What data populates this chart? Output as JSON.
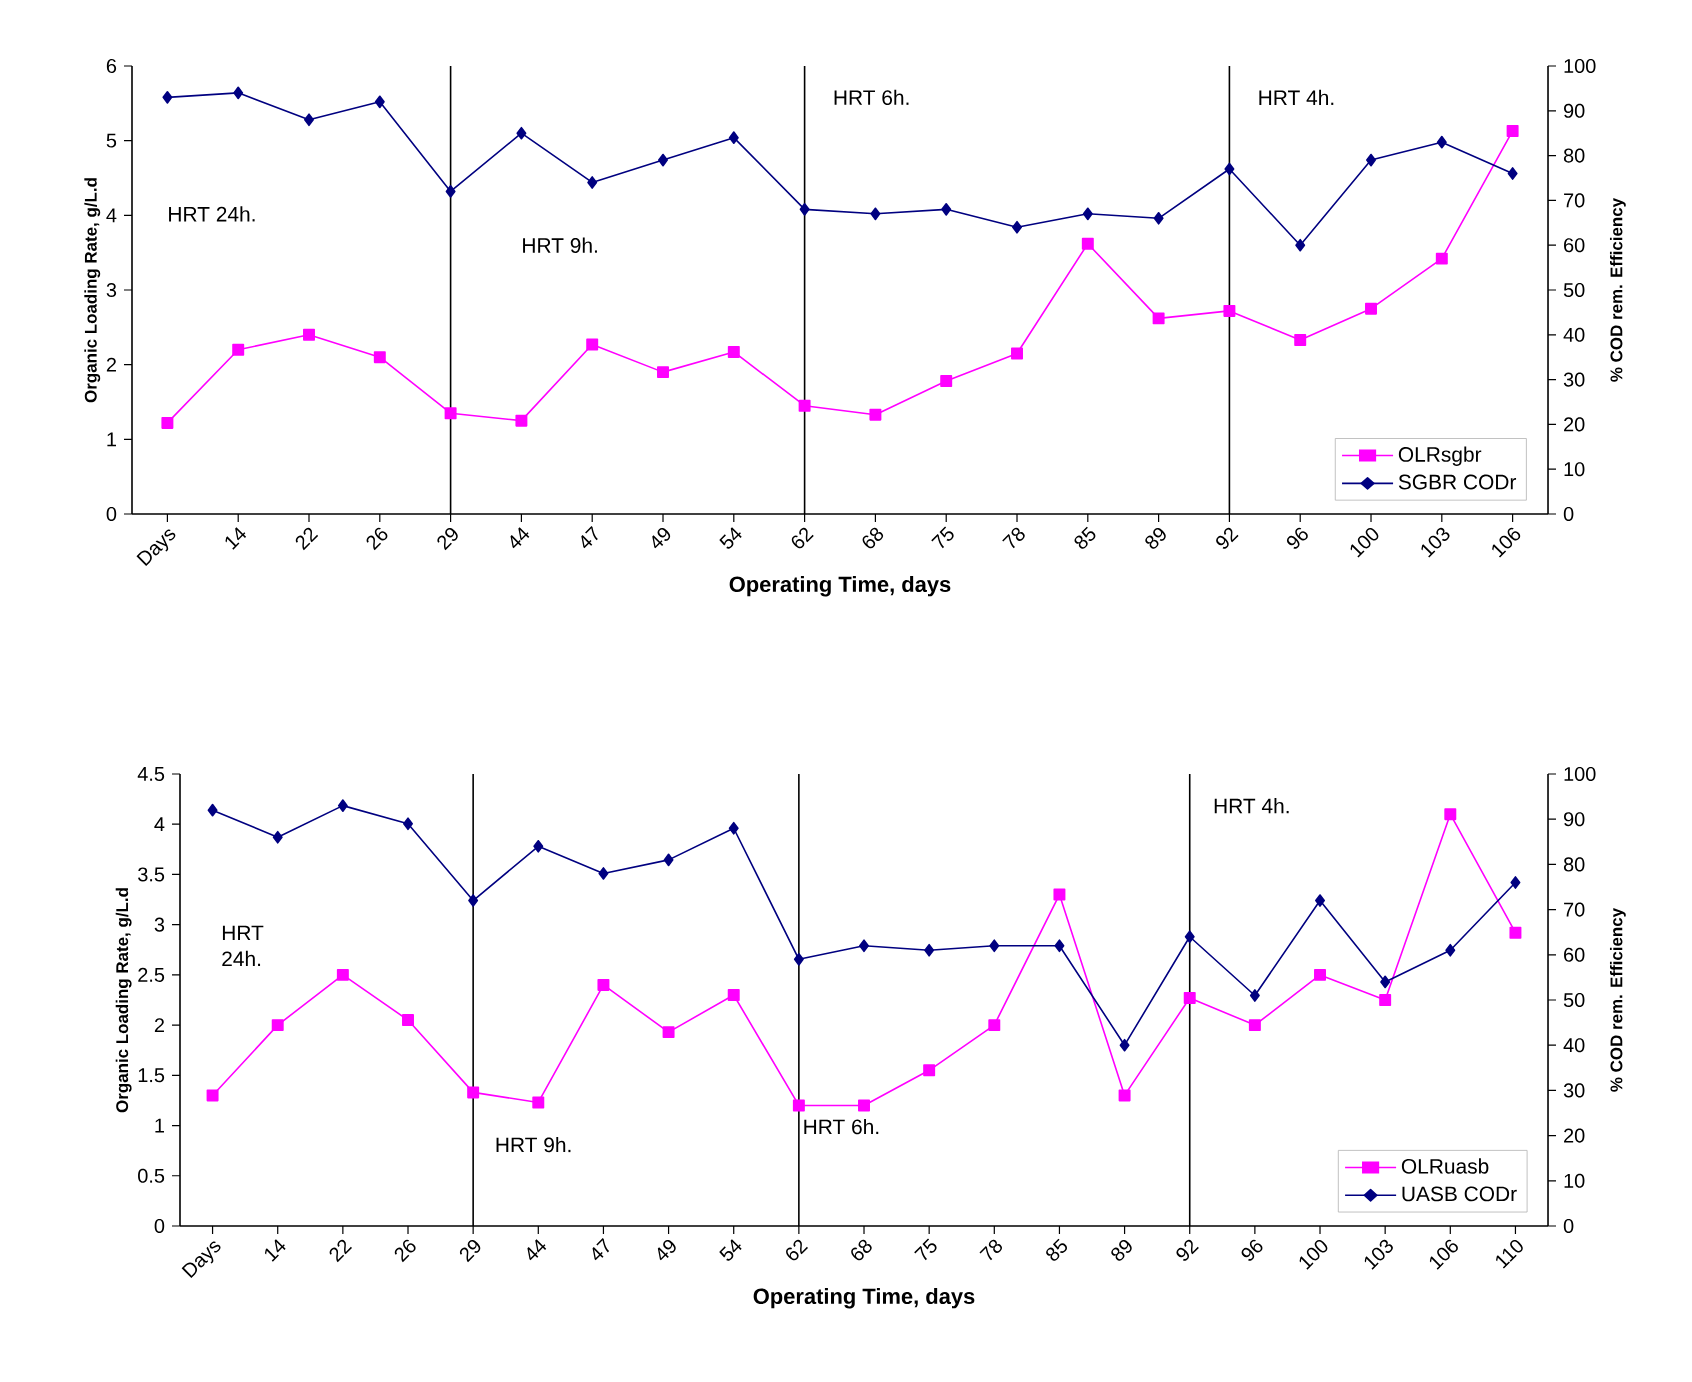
{
  "chart_data": [
    {
      "type": "line",
      "xlabel": "Operating Time, days",
      "ylabel": "Organic Loading Rate, g/L.d",
      "y2label": "% COD rem. Efficiency",
      "categories": [
        "Days",
        "14",
        "22",
        "26",
        "29",
        "44",
        "47",
        "49",
        "54",
        "62",
        "68",
        "75",
        "78",
        "85",
        "89",
        "92",
        "96",
        "100",
        "103",
        "106"
      ],
      "ylim": [
        0,
        6
      ],
      "yticks": [
        0,
        1,
        2,
        3,
        4,
        5,
        6
      ],
      "y2lim": [
        0,
        100
      ],
      "y2ticks": [
        0,
        10,
        20,
        30,
        40,
        50,
        60,
        70,
        80,
        90,
        100
      ],
      "series": [
        {
          "name": "OLRsgbr",
          "color": "#ff00ff",
          "marker": "square",
          "values": [
            1.22,
            2.2,
            2.4,
            2.1,
            1.35,
            1.25,
            2.27,
            1.9,
            2.17,
            1.45,
            1.33,
            1.78,
            2.15,
            3.62,
            2.62,
            2.72,
            2.33,
            2.75,
            3.42,
            5.13
          ]
        },
        {
          "name": "SGBR CODr",
          "color": "#000080",
          "marker": "diamond",
          "axis": "y2",
          "values": [
            93,
            94,
            88,
            92,
            72,
            85,
            74,
            79,
            84,
            68,
            67,
            68,
            64,
            67,
            66,
            77,
            60,
            79,
            83,
            76
          ]
        }
      ],
      "ref_lines": [
        {
          "axis": "x",
          "value": "29"
        },
        {
          "axis": "x",
          "value": "62"
        },
        {
          "axis": "x",
          "value": "92"
        }
      ],
      "annotations": [
        "HRT 24h.",
        "HRT 9h.",
        "HRT 6h.",
        "HRT 4h."
      ],
      "legend": "bottom right"
    },
    {
      "type": "line",
      "xlabel": "Operating Time, days",
      "ylabel": "Organic Loading Rate, g/L.d",
      "y2label": "% COD rem. Efficiency",
      "categories": [
        "Days",
        "14",
        "22",
        "26",
        "29",
        "44",
        "47",
        "49",
        "54",
        "62",
        "68",
        "75",
        "78",
        "85",
        "89",
        "92",
        "96",
        "100",
        "103",
        "106",
        "110"
      ],
      "ylim": [
        0,
        4.5
      ],
      "yticks": [
        0,
        0.5,
        1,
        1.5,
        2,
        2.5,
        3,
        3.5,
        4,
        4.5
      ],
      "y2lim": [
        0,
        100
      ],
      "y2ticks": [
        0,
        10,
        20,
        30,
        40,
        50,
        60,
        70,
        80,
        90,
        100
      ],
      "series": [
        {
          "name": "OLRuasb",
          "color": "#ff00ff",
          "marker": "square",
          "values": [
            1.3,
            2.0,
            2.5,
            2.05,
            1.33,
            1.23,
            2.4,
            1.93,
            2.3,
            1.2,
            1.2,
            1.55,
            2.0,
            3.3,
            1.3,
            2.27,
            2.0,
            2.5,
            2.25,
            4.1,
            2.92
          ]
        },
        {
          "name": "UASB CODr",
          "color": "#000080",
          "marker": "diamond",
          "axis": "y2",
          "values": [
            92,
            86,
            93,
            89,
            72,
            84,
            78,
            81,
            88,
            59,
            62,
            61,
            62,
            62,
            40,
            64,
            51,
            72,
            54,
            61,
            76
          ]
        }
      ],
      "ref_lines": [
        {
          "axis": "x",
          "value": "29"
        },
        {
          "axis": "x",
          "value": "62"
        },
        {
          "axis": "x",
          "value": "92"
        }
      ],
      "annotations": [
        "HRT 24h.",
        "HRT 9h.",
        "HRT 6h.",
        "HRT 4h."
      ],
      "legend": "bottom right"
    }
  ]
}
